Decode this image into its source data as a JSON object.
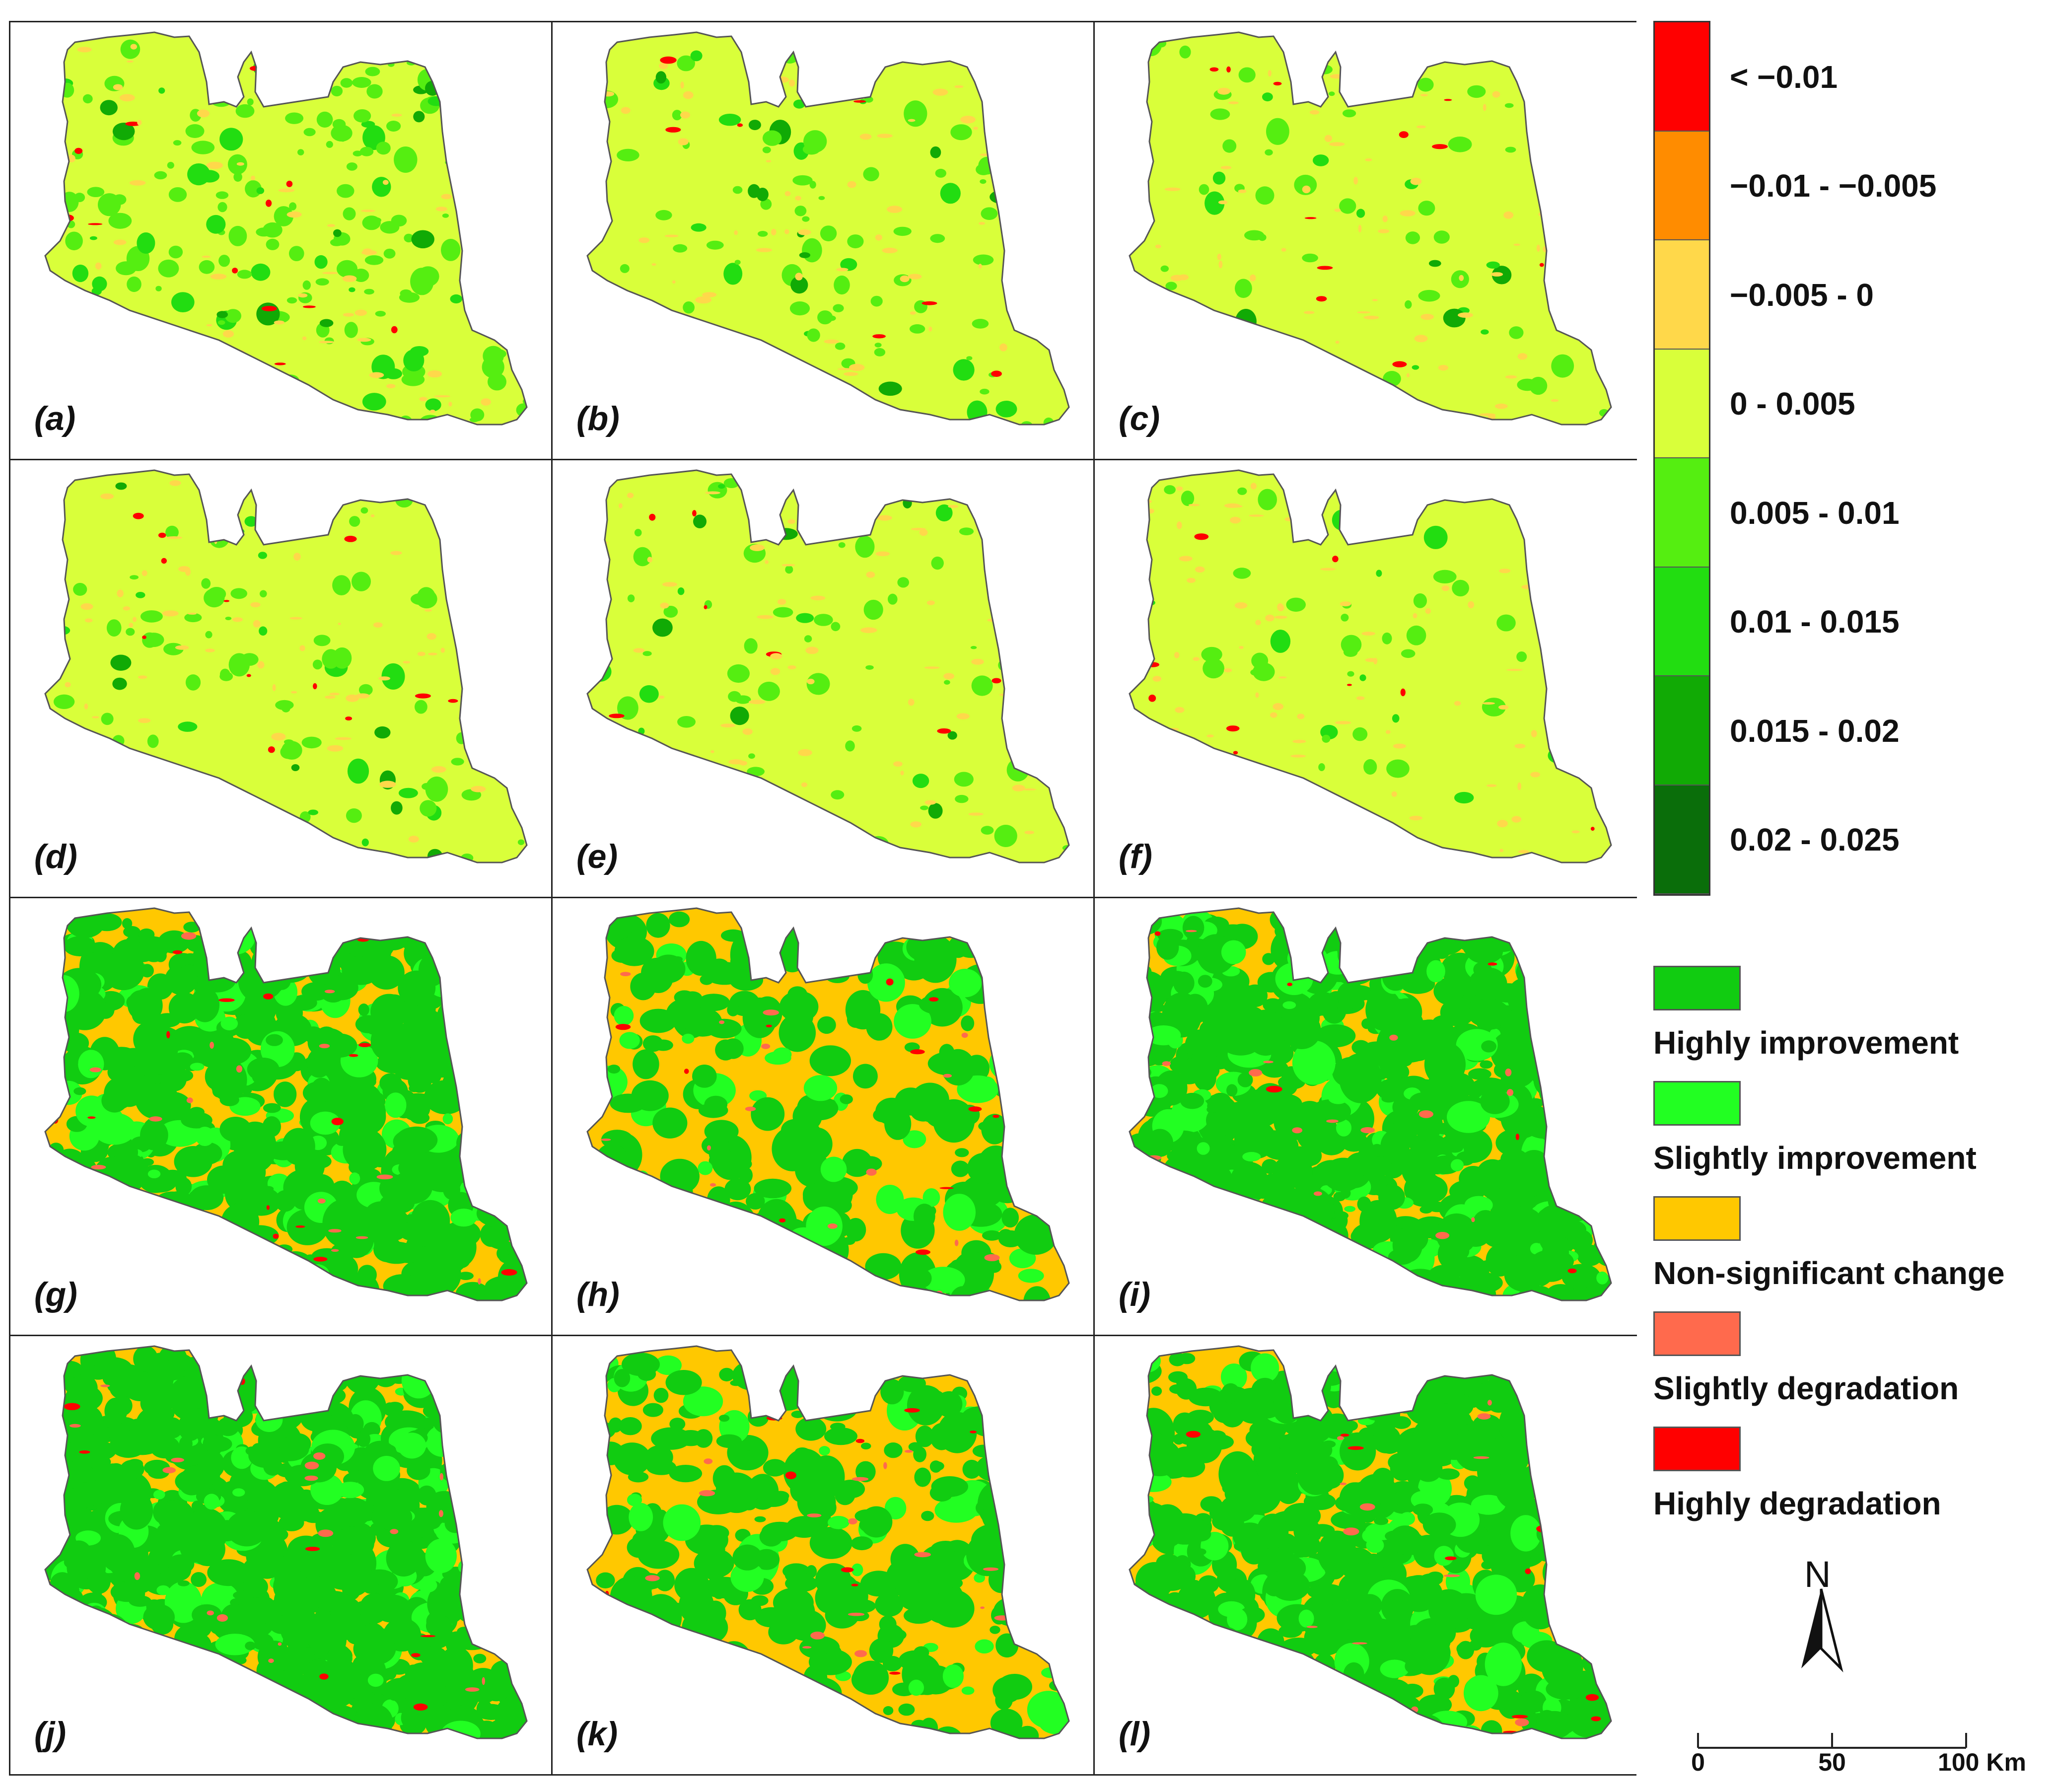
{
  "panels": [
    {
      "label": "(a)",
      "type": "gradient",
      "mix": "a"
    },
    {
      "label": "(b)",
      "type": "gradient",
      "mix": "b"
    },
    {
      "label": "(c)",
      "type": "gradient",
      "mix": "c"
    },
    {
      "label": "(d)",
      "type": "gradient",
      "mix": "d"
    },
    {
      "label": "(e)",
      "type": "gradient",
      "mix": "e"
    },
    {
      "label": "(f)",
      "type": "gradient",
      "mix": "f"
    },
    {
      "label": "(g)",
      "type": "class",
      "mix": "g"
    },
    {
      "label": "(h)",
      "type": "class",
      "mix": "h"
    },
    {
      "label": "(i)",
      "type": "class",
      "mix": "i"
    },
    {
      "label": "(j)",
      "type": "class",
      "mix": "j"
    },
    {
      "label": "(k)",
      "type": "class",
      "mix": "k"
    },
    {
      "label": "(l)",
      "type": "class",
      "mix": "l"
    }
  ],
  "colorbar": {
    "bins": [
      {
        "label": "< −0.01",
        "color": "#ff0000"
      },
      {
        "label": "−0.01 - −0.005",
        "color": "#ff8c00"
      },
      {
        "label": "−0.005 - 0",
        "color": "#ffd84a"
      },
      {
        "label": "0 - 0.005",
        "color": "#d9ff3a"
      },
      {
        "label": "0.005 - 0.01",
        "color": "#55ee11"
      },
      {
        "label": "0.01 - 0.015",
        "color": "#22dd11"
      },
      {
        "label": "0.015 - 0.02",
        "color": "#11aa05"
      },
      {
        "label": "0.02 - 0.025",
        "color": "#0a6e0a"
      }
    ]
  },
  "class_legend": [
    {
      "label": "Highly  improvement",
      "color": "#11cc11"
    },
    {
      "label": "Slightly  improvement",
      "color": "#22ff22"
    },
    {
      "label": "Non-significant change",
      "color": "#ffc800"
    },
    {
      "label": "Slightly degradation",
      "color": "#ff6a4d"
    },
    {
      "label": "Highly  degradation",
      "color": "#ff0000"
    }
  ],
  "north_arrow": {
    "letter": "N"
  },
  "scale_bar": {
    "ticks": [
      "0",
      "50",
      "100 Km"
    ]
  }
}
